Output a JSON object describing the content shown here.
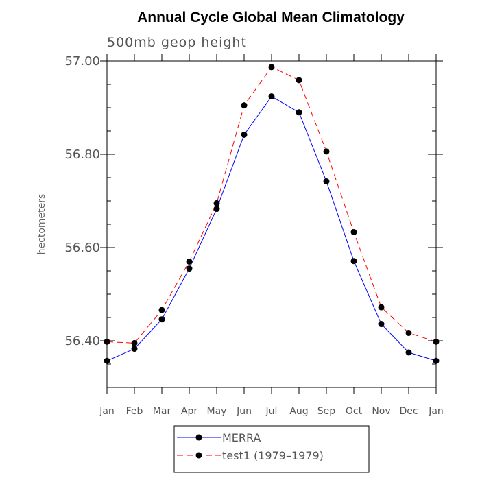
{
  "chart_data": {
    "type": "line",
    "title": "Annual Cycle Global Mean Climatology",
    "subtitle": "500mb geop height",
    "xlabel": "",
    "ylabel": "hectometers",
    "categories": [
      "Jan",
      "Feb",
      "Mar",
      "Apr",
      "May",
      "Jun",
      "Jul",
      "Aug",
      "Sep",
      "Oct",
      "Nov",
      "Dec",
      "Jan"
    ],
    "ylim": [
      56.3,
      57.0
    ],
    "yticks": [
      56.4,
      56.6,
      56.8,
      57.0
    ],
    "ytick_labels": [
      "56.40",
      "56.60",
      "56.80",
      "57.00"
    ],
    "yminor_step": 0.05,
    "series": [
      {
        "name": "MERRA",
        "color": "#0000ff",
        "dash": "solid",
        "values": [
          56.357,
          56.383,
          56.446,
          56.555,
          56.683,
          56.842,
          56.924,
          56.89,
          56.742,
          56.571,
          56.436,
          56.375,
          56.357
        ]
      },
      {
        "name": "test1 (1979-1979)",
        "color": "#ff0000",
        "dash": "dashed",
        "values": [
          56.398,
          56.395,
          56.466,
          56.57,
          56.695,
          56.905,
          56.987,
          56.959,
          56.806,
          56.633,
          56.472,
          56.417,
          56.398
        ]
      }
    ],
    "legend": {
      "position": "bottom",
      "labels": [
        "MERRA",
        "test1 (1979–1979)"
      ]
    }
  }
}
